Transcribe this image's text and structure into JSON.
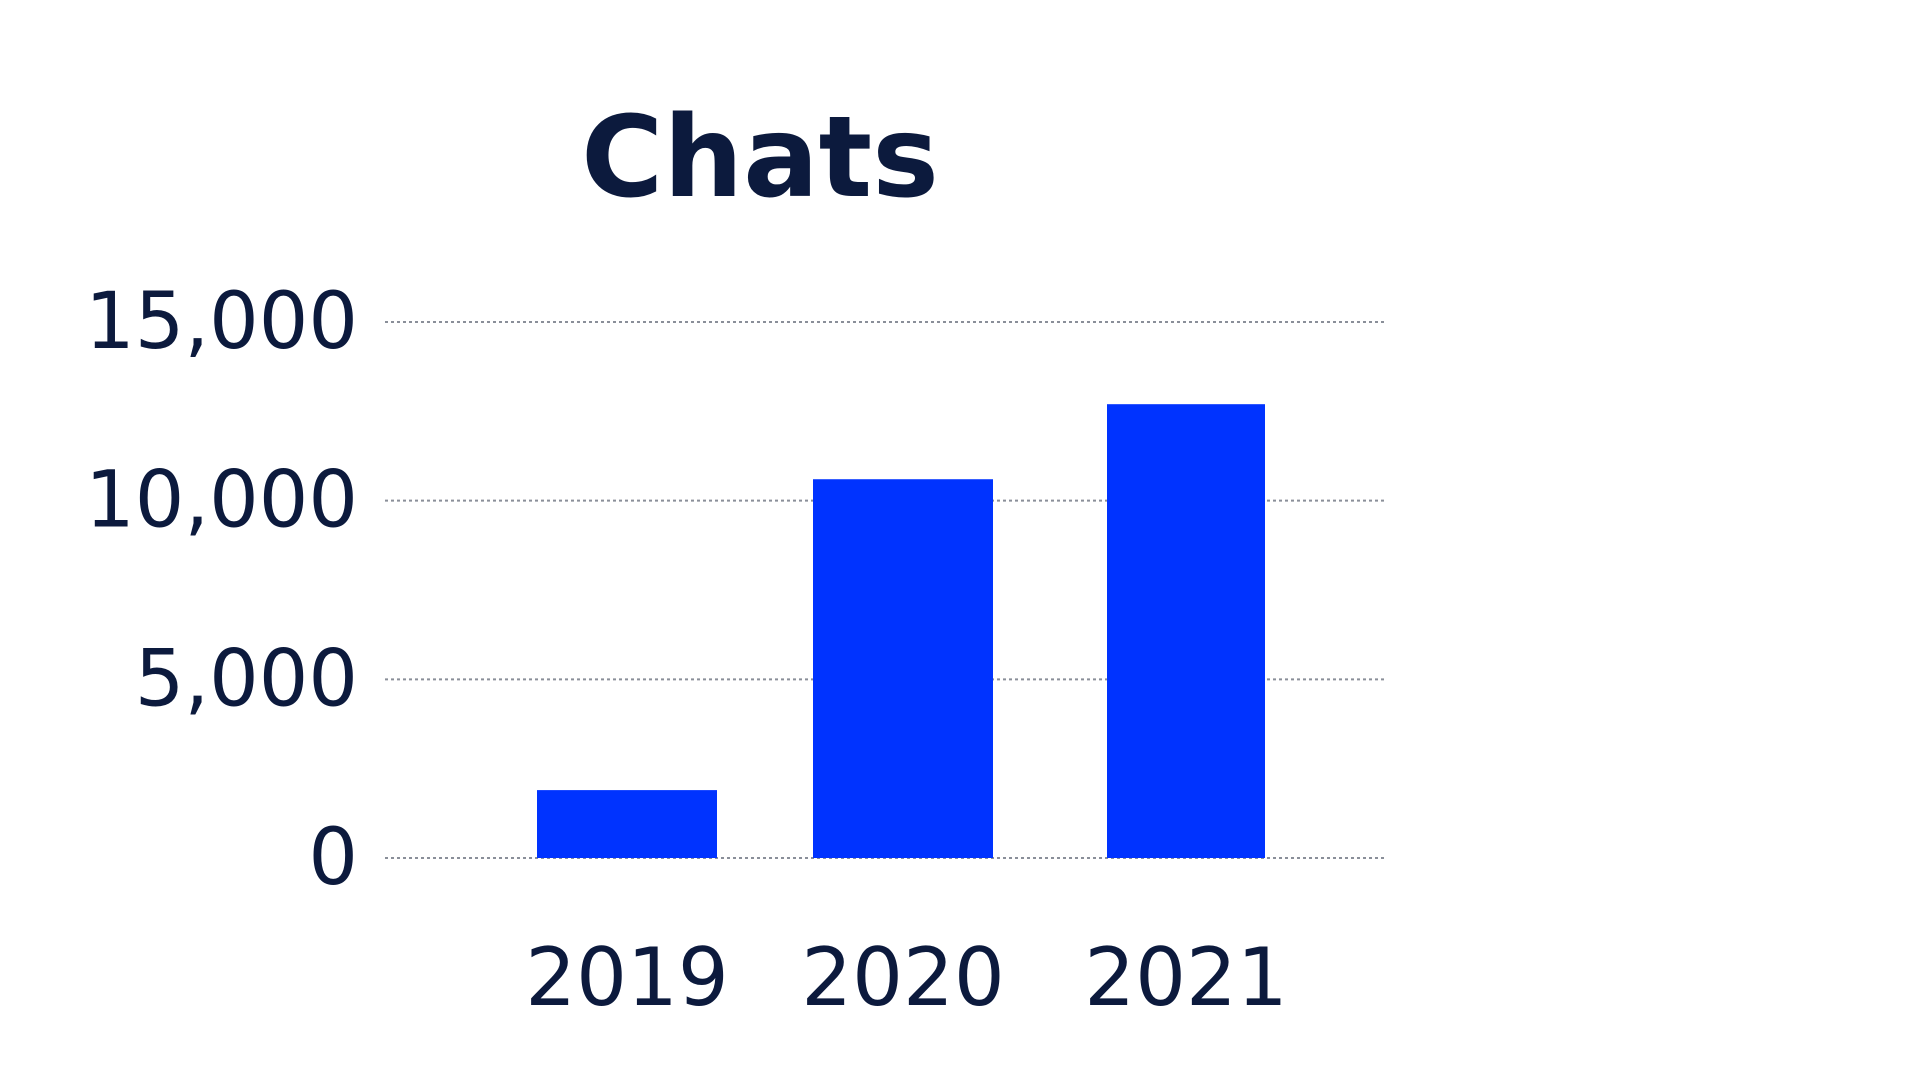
{
  "chart_data": {
    "type": "bar",
    "title": "Chats",
    "xlabel": "",
    "ylabel": "",
    "categories": [
      "2019",
      "2020",
      "2021"
    ],
    "values": [
      1900,
      10600,
      12700
    ],
    "ylim": [
      0,
      15000
    ],
    "yticks": [
      0,
      5000,
      10000,
      15000
    ],
    "ytick_labels": [
      "0",
      "5,000",
      "10,000",
      "15,000"
    ],
    "grid": true,
    "legend": "none",
    "colors": {
      "bar": "#0033ff",
      "text": "#0c1a3d",
      "grid": "#8a8f99"
    }
  }
}
